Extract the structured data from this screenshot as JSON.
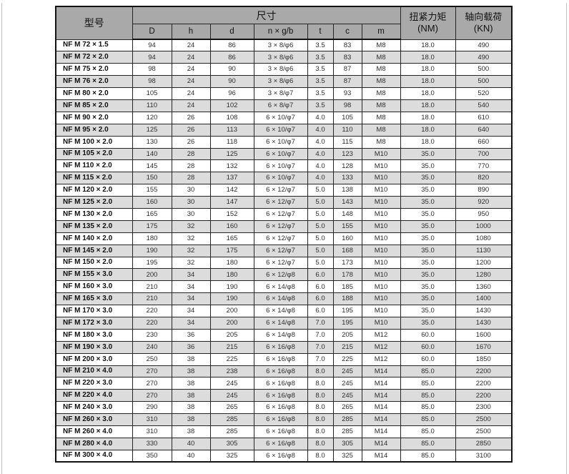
{
  "colors": {
    "header_bg": "#a9a9a9",
    "stripe_bg": "#dcdcdc",
    "row_bg": "#ffffff",
    "table_border": "#131313",
    "page_edge_line": "#c4c4c4"
  },
  "table": {
    "header": {
      "model": "型号",
      "dimensions": "尺寸",
      "sub_columns": [
        "D",
        "h",
        "d",
        "n × g/b",
        "t",
        "c",
        "m"
      ],
      "torque_line1": "扭紧力矩",
      "torque_line2": "(NM)",
      "axial_line1": "轴向载荷",
      "axial_line2": "(KN)"
    },
    "rows": [
      [
        "NF M 72 × 1.5",
        "94",
        "24",
        "86",
        "3 × 8/φ6",
        "3.5",
        "83",
        "M8",
        "18.0",
        "490"
      ],
      [
        "NF M 72 × 2.0",
        "94",
        "24",
        "86",
        "3 × 8/φ6",
        "3.5",
        "83",
        "M8",
        "18.0",
        "490"
      ],
      [
        "NF M 75 × 2.0",
        "98",
        "24",
        "90",
        "3 × 8/φ6",
        "3.5",
        "87",
        "M8",
        "18.0",
        "500"
      ],
      [
        "NF M 76 × 2.0",
        "98",
        "24",
        "90",
        "3 × 8/φ6",
        "3.5",
        "87",
        "M8",
        "18.0",
        "500"
      ],
      [
        "NF M 80 × 2.0",
        "105",
        "24",
        "96",
        "3 × 8/φ7",
        "3.5",
        "93",
        "M8",
        "18.0",
        "520"
      ],
      [
        "NF M 85 × 2.0",
        "110",
        "24",
        "102",
        "6 × 8/φ7",
        "3.5",
        "98",
        "M8",
        "18.0",
        "540"
      ],
      [
        "NF M 90 × 2.0",
        "120",
        "26",
        "108",
        "6 × 10/φ7",
        "4.0",
        "105",
        "M8",
        "18.0",
        "610"
      ],
      [
        "NF M 95 × 2.0",
        "125",
        "26",
        "113",
        "6 × 10/φ7",
        "4.0",
        "110",
        "M8",
        "18.0",
        "640"
      ],
      [
        "NF M 100 × 2.0",
        "130",
        "26",
        "118",
        "6 × 10/φ7",
        "4.0",
        "115",
        "M8",
        "18.0",
        "660"
      ],
      [
        "NF M 105 × 2.0",
        "140",
        "28",
        "125",
        "6 × 10/φ7",
        "4.0",
        "123",
        "M10",
        "35.0",
        "700"
      ],
      [
        "NF M 110 × 2.0",
        "145",
        "28",
        "132",
        "6 × 10/φ7",
        "4.0",
        "128",
        "M10",
        "35.0",
        "770"
      ],
      [
        "NF M 115 × 2.0",
        "150",
        "28",
        "137",
        "6 × 10/φ7",
        "4.0",
        "133",
        "M10",
        "35.0",
        "820"
      ],
      [
        "NF M 120 × 2.0",
        "155",
        "30",
        "142",
        "6 × 12/φ7",
        "5.0",
        "138",
        "M10",
        "35.0",
        "890"
      ],
      [
        "NF M 125 × 2.0",
        "160",
        "30",
        "147",
        "6 × 12/φ7",
        "5.0",
        "143",
        "M10",
        "35.0",
        "920"
      ],
      [
        "NF M 130 × 2.0",
        "165",
        "30",
        "152",
        "6 × 12/φ7",
        "5.0",
        "148",
        "M10",
        "35.0",
        "950"
      ],
      [
        "NF M 135 × 2.0",
        "175",
        "32",
        "160",
        "6 × 12/φ7",
        "5.0",
        "155",
        "M10",
        "35.0",
        "1000"
      ],
      [
        "NF M 140 × 2.0",
        "180",
        "32",
        "165",
        "6 × 12/φ7",
        "5.0",
        "160",
        "M10",
        "35.0",
        "1080"
      ],
      [
        "NF M 145 × 2.0",
        "190",
        "32",
        "175",
        "6 × 12/φ7",
        "5.0",
        "168",
        "M10",
        "35.0",
        "1130"
      ],
      [
        "NF M 150 × 2.0",
        "195",
        "32",
        "180",
        "6 × 12/φ7",
        "5.0",
        "173",
        "M10",
        "35.0",
        "1200"
      ],
      [
        "NF M 155 × 3.0",
        "200",
        "34",
        "180",
        "6 × 12/φ8",
        "6.0",
        "178",
        "M10",
        "35.0",
        "1280"
      ],
      [
        "NF M 160 × 3.0",
        "210",
        "34",
        "190",
        "6 × 14/φ8",
        "6.0",
        "185",
        "M10",
        "35.0",
        "1360"
      ],
      [
        "NF M 165 × 3.0",
        "210",
        "34",
        "190",
        "6 × 14/φ8",
        "6.0",
        "188",
        "M10",
        "35.0",
        "1400"
      ],
      [
        "NF M 170 × 3.0",
        "220",
        "34",
        "200",
        "6 × 14/φ8",
        "6.0",
        "195",
        "M10",
        "35.0",
        "1430"
      ],
      [
        "NF M 172 × 3.0",
        "220",
        "34",
        "200",
        "6 × 14/φ8",
        "7.0",
        "195",
        "M10",
        "35.0",
        "1430"
      ],
      [
        "NF M 180 × 3.0",
        "230",
        "36",
        "205",
        "6 × 14/φ8",
        "7.0",
        "205",
        "M12",
        "60.0",
        "1600"
      ],
      [
        "NF M 190 × 3.0",
        "240",
        "36",
        "215",
        "6 × 16/φ8",
        "7.0",
        "215",
        "M12",
        "60.0",
        "1670"
      ],
      [
        "NF M 200 × 3.0",
        "250",
        "38",
        "225",
        "6 × 16/φ8",
        "7.0",
        "225",
        "M12",
        "60.0",
        "1850"
      ],
      [
        "NF M 210 × 4.0",
        "270",
        "38",
        "238",
        "6 × 16/φ8",
        "8.0",
        "245",
        "M14",
        "85.0",
        "2200"
      ],
      [
        "NF M 220 × 3.0",
        "270",
        "38",
        "245",
        "6 × 16/φ8",
        "8.0",
        "245",
        "M14",
        "85.0",
        "2200"
      ],
      [
        "NF M 220 × 4.0",
        "270",
        "38",
        "245",
        "6 × 16/φ8",
        "8.0",
        "245",
        "M14",
        "85.0",
        "2200"
      ],
      [
        "NF M 240 × 3.0",
        "290",
        "38",
        "265",
        "6 × 16/φ8",
        "8.0",
        "265",
        "M14",
        "85.0",
        "2300"
      ],
      [
        "NF M 260 × 3.0",
        "310",
        "38",
        "285",
        "6 × 16/φ8",
        "8.0",
        "285",
        "M14",
        "85.0",
        "2500"
      ],
      [
        "NF M 260 × 4.0",
        "310",
        "38",
        "285",
        "6 × 16/φ8",
        "8.0",
        "285",
        "M14",
        "85.0",
        "2500"
      ],
      [
        "NF M 280 × 4.0",
        "330",
        "40",
        "305",
        "6 × 16/φ8",
        "8.0",
        "305",
        "M14",
        "85.0",
        "2850"
      ],
      [
        "NF M 300 × 4.0",
        "350",
        "40",
        "325",
        "6 × 16/φ8",
        "8.0",
        "325",
        "M14",
        "85.0",
        "3100"
      ]
    ]
  }
}
